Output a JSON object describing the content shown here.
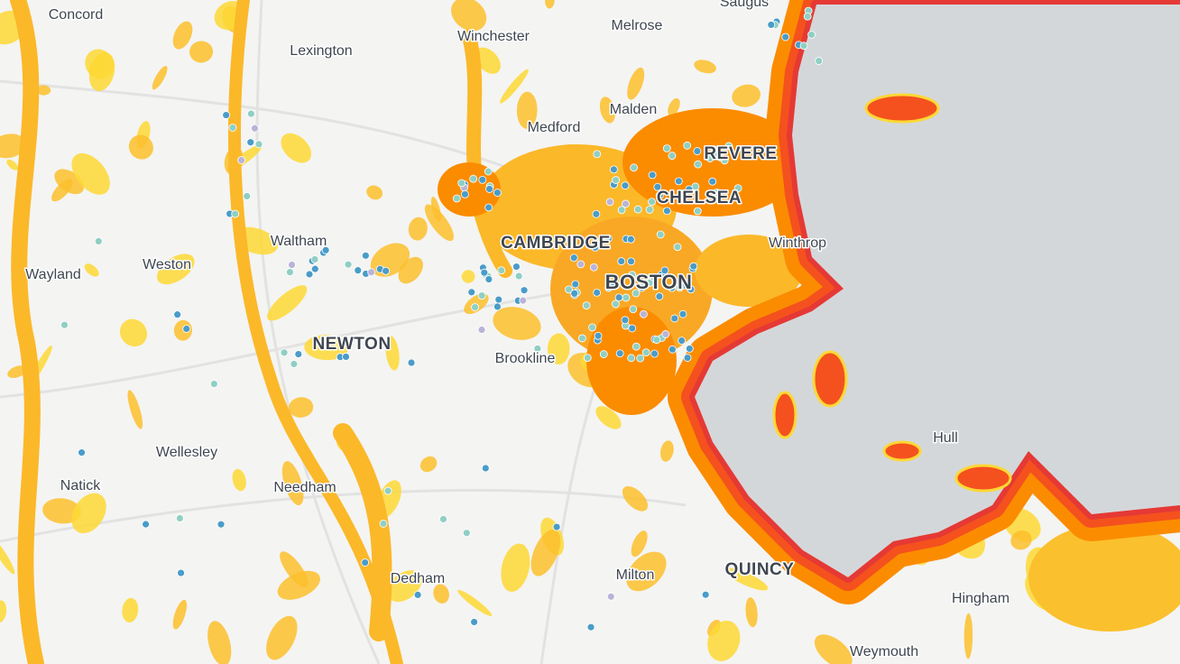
{
  "map": {
    "places": [
      "Concord",
      "Saugus",
      "Melrose",
      "Winchester",
      "Lexington",
      "Malden",
      "Medford",
      "REVERE",
      "CHELSEA",
      "CAMBRIDGE",
      "Winthrop",
      "Waltham",
      "Weston",
      "Wayland",
      "BOSTON",
      "NEWTON",
      "Brookline",
      "Hull",
      "Wellesley",
      "Natick",
      "Needham",
      "Milton",
      "QUINCY",
      "Dedham",
      "Hingham",
      "Weymouth"
    ]
  }
}
